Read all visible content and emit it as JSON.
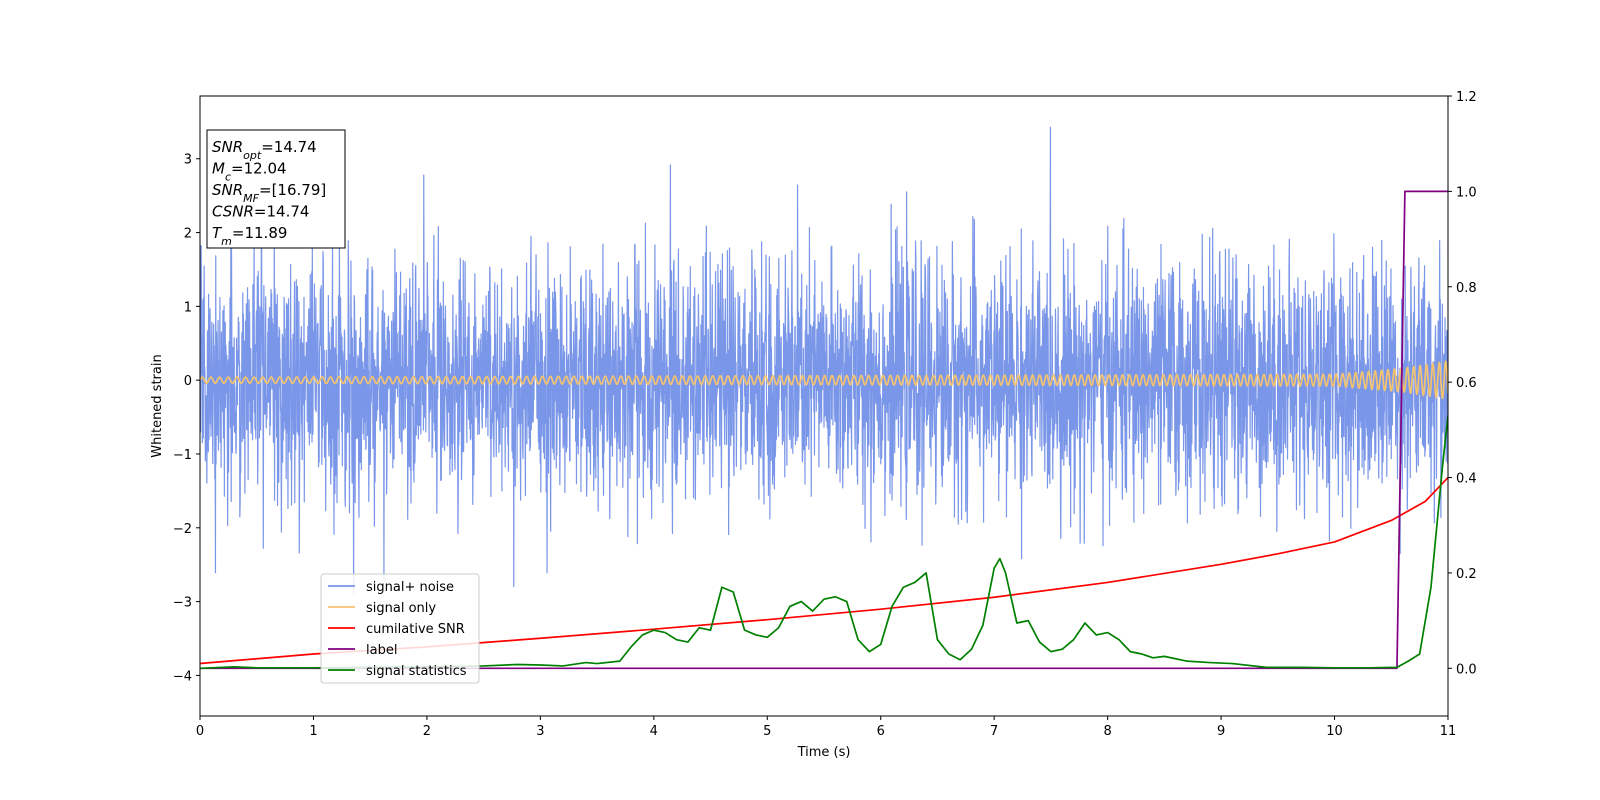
{
  "chart_data": {
    "type": "line",
    "xlabel": "Time (s)",
    "ylabel": "Whitened strain",
    "xlim": [
      0,
      11
    ],
    "ylim": [
      -4.55,
      3.85
    ],
    "y2lim": [
      -0.1,
      1.2
    ],
    "x_ticks": [
      "0",
      "1",
      "2",
      "3",
      "4",
      "5",
      "6",
      "7",
      "8",
      "9",
      "10",
      "11"
    ],
    "y_ticks": [
      "3",
      "2",
      "1",
      "0",
      "−1",
      "−2",
      "−3",
      "−4"
    ],
    "y2_ticks": [
      "1.2",
      "1.0",
      "0.8",
      "0.6",
      "0.4",
      "0.2",
      "0.0"
    ],
    "grid": false,
    "legend_position": "lower-left",
    "info_box": [
      {
        "sym": "SNR",
        "sub": "opt",
        "val": "=14.74"
      },
      {
        "sym": "M",
        "sub": "c",
        "val": "=12.04"
      },
      {
        "sym": "SNR",
        "sub": "MF",
        "val": "=[16.79]"
      },
      {
        "sym": "CSNR",
        "sub": "",
        "val": "=14.74"
      },
      {
        "sym": "T",
        "sub": "m",
        "val": "=11.89"
      }
    ],
    "series": [
      {
        "name": "signal+ noise",
        "axis": "left",
        "color": "#7a96e8",
        "kind": "noise",
        "sigma": 0.8,
        "range_min": -2.9,
        "range_max": 3.45
      },
      {
        "name": "signal only",
        "axis": "left",
        "color": "#f4c370",
        "kind": "chirp",
        "amplitude_x": [
          0,
          10,
          10.6,
          11
        ],
        "amplitude": [
          0.04,
          0.08,
          0.16,
          0.26
        ]
      },
      {
        "name": "cumilative SNR",
        "axis": "right",
        "color": "#ff0000",
        "x": [
          0,
          1,
          2,
          3,
          4,
          5,
          6,
          7,
          8,
          9,
          9.5,
          10,
          10.5,
          10.8,
          11
        ],
        "y": [
          0.01,
          0.03,
          0.045,
          0.063,
          0.082,
          0.102,
          0.124,
          0.149,
          0.18,
          0.218,
          0.24,
          0.265,
          0.31,
          0.35,
          0.4
        ]
      },
      {
        "name": "label",
        "axis": "right",
        "color": "#800080",
        "x": [
          0,
          10.55,
          10.62,
          11
        ],
        "y": [
          0,
          0,
          1,
          1
        ]
      },
      {
        "name": "signal statistics",
        "axis": "right",
        "color": "#008000",
        "x": [
          0,
          0.3,
          0.5,
          1,
          1.5,
          2,
          2.5,
          2.8,
          3.0,
          3.2,
          3.4,
          3.5,
          3.7,
          3.8,
          3.9,
          4.0,
          4.1,
          4.2,
          4.3,
          4.4,
          4.5,
          4.6,
          4.7,
          4.8,
          4.9,
          5.0,
          5.1,
          5.2,
          5.3,
          5.4,
          5.5,
          5.6,
          5.7,
          5.8,
          5.9,
          6.0,
          6.1,
          6.2,
          6.3,
          6.4,
          6.5,
          6.6,
          6.7,
          6.8,
          6.9,
          7.0,
          7.05,
          7.1,
          7.2,
          7.3,
          7.4,
          7.5,
          7.6,
          7.7,
          7.8,
          7.9,
          8.0,
          8.1,
          8.2,
          8.3,
          8.4,
          8.5,
          8.7,
          8.9,
          9.1,
          9.4,
          9.7,
          10.0,
          10.3,
          10.55,
          10.65,
          10.75,
          10.85,
          10.95,
          11.0
        ],
        "y": [
          0,
          0.003,
          0.001,
          0.001,
          0.002,
          0.003,
          0.005,
          0.008,
          0.007,
          0.005,
          0.012,
          0.01,
          0.015,
          0.045,
          0.07,
          0.08,
          0.075,
          0.06,
          0.055,
          0.085,
          0.08,
          0.17,
          0.16,
          0.08,
          0.07,
          0.065,
          0.085,
          0.13,
          0.14,
          0.12,
          0.145,
          0.15,
          0.14,
          0.06,
          0.035,
          0.05,
          0.13,
          0.17,
          0.18,
          0.2,
          0.06,
          0.03,
          0.018,
          0.04,
          0.09,
          0.21,
          0.23,
          0.2,
          0.095,
          0.1,
          0.055,
          0.035,
          0.04,
          0.06,
          0.095,
          0.07,
          0.075,
          0.06,
          0.035,
          0.03,
          0.022,
          0.025,
          0.015,
          0.012,
          0.01,
          0.002,
          0.002,
          0.001,
          0.001,
          0.002,
          0.015,
          0.03,
          0.17,
          0.42,
          0.53
        ]
      }
    ]
  }
}
